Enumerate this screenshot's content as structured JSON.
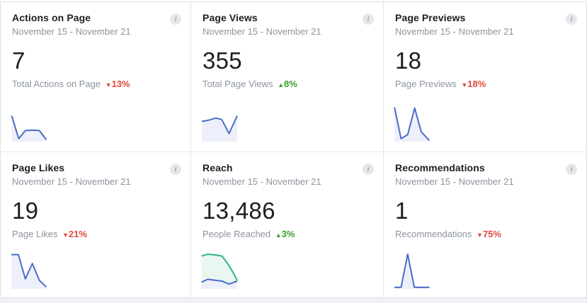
{
  "panel": {
    "info_icon_glyph": "i"
  },
  "colors": {
    "accent_blue": "#4b6bc9",
    "accent_blue_fill": "#edf0fa",
    "accent_teal": "#31b293",
    "accent_teal_fill": "#e9f7f1",
    "delta_down_red": "#e0483e",
    "delta_up_green": "#399f27",
    "text_primary": "#1c1e21",
    "text_secondary": "#8d949e",
    "divider": "#e4e6e9",
    "page_background": "#f0f2f5"
  },
  "cards": [
    {
      "title": "Actions on Page",
      "date_range": "November 15 - November 21",
      "value": "7",
      "label": "Total Actions on Page",
      "delta": {
        "arrow": "▼",
        "text": "13%",
        "direction": "down"
      }
    },
    {
      "title": "Page Views",
      "date_range": "November 15 - November 21",
      "value": "355",
      "label": "Total Page Views",
      "delta": {
        "arrow": "▲",
        "text": "8%",
        "direction": "up"
      }
    },
    {
      "title": "Page Previews",
      "date_range": "November 15 - November 21",
      "value": "18",
      "label": "Page Previews",
      "delta": {
        "arrow": "▼",
        "text": "18%",
        "direction": "down"
      }
    },
    {
      "title": "Page Likes",
      "date_range": "November 15 - November 21",
      "value": "19",
      "label": "Page Likes",
      "delta": {
        "arrow": "▼",
        "text": "21%",
        "direction": "down"
      }
    },
    {
      "title": "Reach",
      "date_range": "November 15 - November 21",
      "value": "13,486",
      "label": "People Reached",
      "delta": {
        "arrow": "▲",
        "text": "3%",
        "direction": "up"
      }
    },
    {
      "title": "Recommendations",
      "date_range": "November 15 - November 21",
      "value": "1",
      "label": "Recommendations",
      "delta": {
        "arrow": "▼",
        "text": "75%",
        "direction": "down"
      }
    }
  ],
  "chart_data": [
    {
      "type": "line",
      "title": "Actions on Page sparkline",
      "coords": "percent-normalized, x left-to-right, y top-down",
      "series": [
        {
          "name": "actions",
          "color": "#4b6bc9",
          "fill": "#edf0fa",
          "fill_mode": "base",
          "points": [
            [
              3,
              30
            ],
            [
              22,
              92
            ],
            [
              40,
              70
            ],
            [
              60,
              69
            ],
            [
              78,
              70
            ],
            [
              97,
              95
            ]
          ]
        }
      ]
    },
    {
      "type": "line",
      "title": "Page Views sparkline",
      "coords": "percent-normalized, x left-to-right, y top-down",
      "series": [
        {
          "name": "views",
          "color": "#4b6bc9",
          "fill": "#edf0fa",
          "fill_mode": "base",
          "points": [
            [
              2,
              45
            ],
            [
              20,
              42
            ],
            [
              40,
              36
            ],
            [
              56,
              40
            ],
            [
              76,
              78
            ],
            [
              98,
              30
            ]
          ]
        }
      ]
    },
    {
      "type": "line",
      "title": "Page Previews sparkline",
      "coords": "percent-normalized, x left-to-right, y top-down",
      "series": [
        {
          "name": "previews",
          "color": "#4b6bc9",
          "fill": "#edf0fa",
          "fill_mode": "base",
          "points": [
            [
              2,
              7
            ],
            [
              20,
              92
            ],
            [
              38,
              81
            ],
            [
              57,
              9
            ],
            [
              75,
              74
            ],
            [
              97,
              97
            ]
          ]
        }
      ]
    },
    {
      "type": "line",
      "title": "Page Likes sparkline",
      "coords": "percent-normalized, x left-to-right, y top-down",
      "series": [
        {
          "name": "likes",
          "color": "#4b6bc9",
          "fill": "#edf0fa",
          "fill_mode": "base",
          "points": [
            [
              2,
              7
            ],
            [
              21,
              7
            ],
            [
              40,
              73
            ],
            [
              59,
              31
            ],
            [
              78,
              77
            ],
            [
              97,
              95
            ]
          ]
        }
      ]
    },
    {
      "type": "line",
      "title": "Reach sparkline",
      "coords": "percent-normalized, x left-to-right, y top-down",
      "series": [
        {
          "name": "paid-reach",
          "color": "#4b6bc9",
          "fill": "#edf0fa",
          "fill_mode": "base",
          "points": [
            [
              1,
              82
            ],
            [
              18,
              74
            ],
            [
              40,
              77
            ],
            [
              57,
              79
            ],
            [
              76,
              87
            ],
            [
              98,
              79
            ]
          ]
        },
        {
          "name": "organic-reach",
          "color": "#31b293",
          "fill": "#e9f7f1",
          "fill_mode": "to-series",
          "fill_to": 0,
          "points": [
            [
              1,
              11
            ],
            [
              18,
              6
            ],
            [
              40,
              8
            ],
            [
              57,
              11
            ],
            [
              74,
              34
            ],
            [
              90,
              61
            ],
            [
              98,
              78
            ]
          ]
        }
      ]
    },
    {
      "type": "line",
      "title": "Recommendations sparkline",
      "coords": "percent-normalized, x left-to-right, y top-down",
      "series": [
        {
          "name": "recommendations",
          "color": "#4b6bc9",
          "fill": "#edf0fa",
          "fill_mode": "base",
          "points": [
            [
              2,
              96
            ],
            [
              20,
              96
            ],
            [
              38,
              6
            ],
            [
              56,
              96
            ],
            [
              75,
              96
            ],
            [
              97,
              96
            ]
          ]
        }
      ]
    }
  ]
}
